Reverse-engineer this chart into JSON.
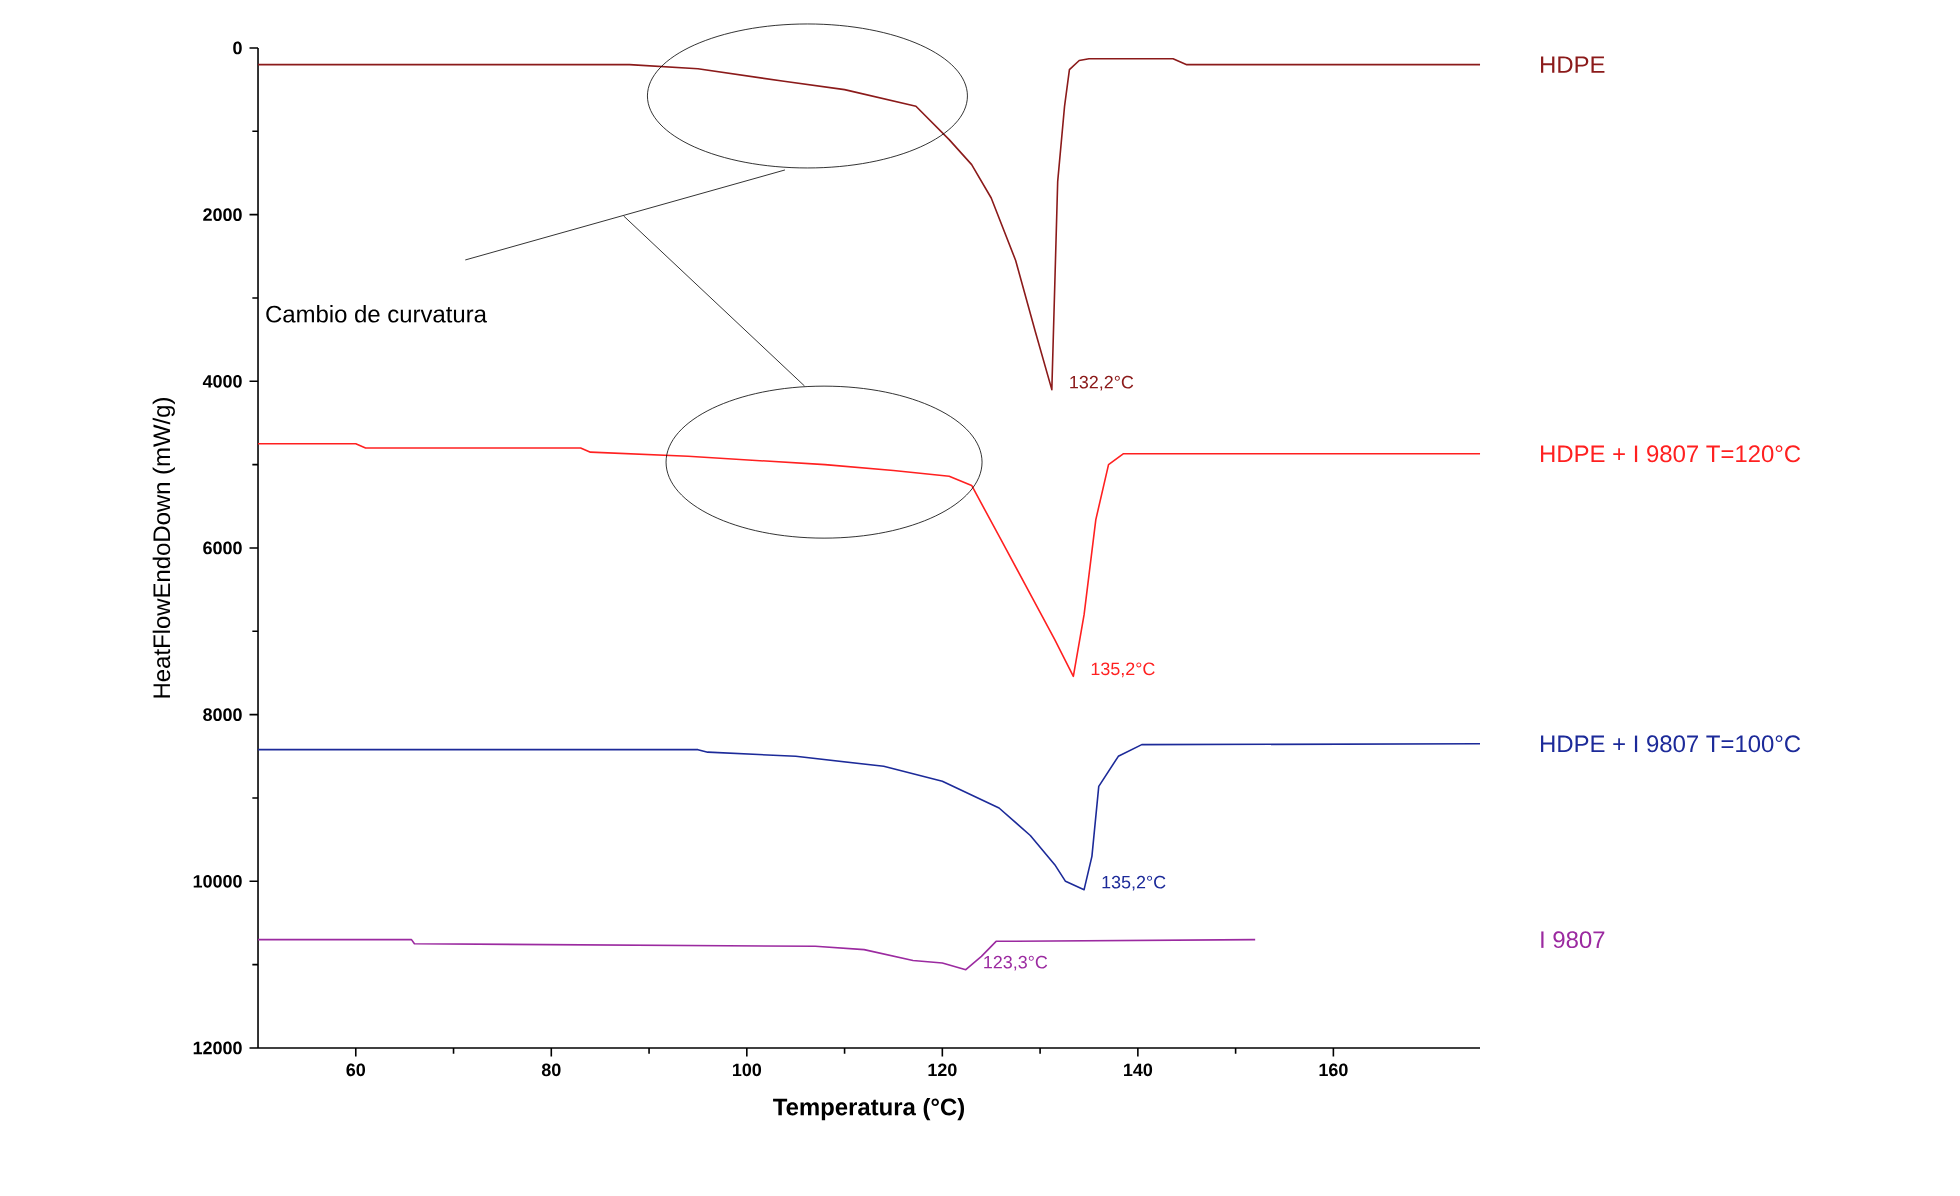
{
  "chart_data": {
    "type": "line",
    "xlabel": "Temperatura (°C)",
    "ylabel": "HeatFlowEndoDown (mW/g)",
    "xlim": [
      50,
      175
    ],
    "ylim": [
      12000,
      0
    ],
    "xticks": [
      60,
      80,
      100,
      120,
      140,
      160
    ],
    "yticks": [
      0,
      2000,
      4000,
      6000,
      8000,
      10000,
      12000
    ],
    "grid": false,
    "marker": "none",
    "line_style": "solid",
    "series": [
      {
        "name": "HDPE",
        "color": "#8b1a1a",
        "x": [
          50,
          88,
          95,
          103.8,
          110,
          117.3,
          120.7,
          123,
          125,
          127.5,
          129.5,
          131.2,
          131.8,
          132.5,
          133,
          134,
          135,
          143.6,
          145,
          175
        ],
        "values": [
          200,
          200,
          250,
          400,
          500,
          700,
          1100,
          1400,
          1800,
          2550,
          3400,
          4100,
          1600,
          700,
          260,
          150,
          130,
          130,
          200,
          200
        ]
      },
      {
        "name": "HDPE + I 9807 T=120°C",
        "color": "#ff2020",
        "x": [
          50,
          60,
          61,
          83,
          84,
          94,
          108,
          115,
          120.7,
          123,
          126,
          129.3,
          131.5,
          133.4,
          134.5,
          135.7,
          137,
          138.5,
          175
        ],
        "values": [
          4750,
          4750,
          4800,
          4800,
          4850,
          4900,
          5000,
          5070,
          5140,
          5250,
          5900,
          6620,
          7100,
          7540,
          6800,
          5660,
          5000,
          4870,
          4870
        ]
      },
      {
        "name": "HDPE + I 9807 T=100°C",
        "color": "#1c2a99",
        "x": [
          50,
          95,
          96,
          105,
          114,
          120,
          125.8,
          129,
          131.5,
          132.6,
          134.5,
          135.3,
          136,
          138,
          140.4,
          175
        ],
        "values": [
          8420,
          8420,
          8450,
          8500,
          8620,
          8800,
          9120,
          9450,
          9800,
          10000,
          10100,
          9700,
          8860,
          8500,
          8360,
          8350
        ]
      },
      {
        "name": "I 9807",
        "color": "#9b2aa0",
        "x": [
          50,
          65.7,
          66,
          107,
          112,
          117,
          120,
          122.4,
          124,
          125.5,
          152
        ],
        "values": [
          10700,
          10700,
          10750,
          10780,
          10820,
          10950,
          10980,
          11060,
          10900,
          10720,
          10700
        ]
      }
    ],
    "annotations": [
      {
        "text": "132,2°C",
        "x": 131.2,
        "y": 4100
      },
      {
        "text": "135,2°C",
        "x": 133.4,
        "y": 7540
      },
      {
        "text": "135,2°C",
        "x": 134.5,
        "y": 10100
      },
      {
        "text": "123,3°C",
        "x": 122.4,
        "y": 11060
      },
      "Cambio de curvatura"
    ]
  }
}
